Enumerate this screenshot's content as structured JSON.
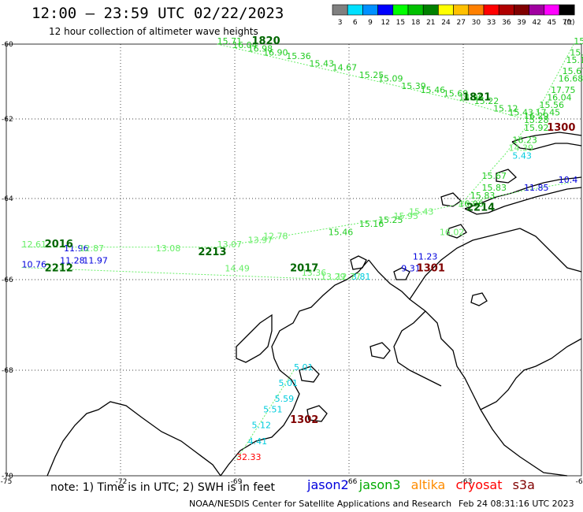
{
  "header": {
    "title": "12:00 — 23:59 UTC 02/22/2023",
    "subtitle": "12 hour collection of altimeter wave heights"
  },
  "legend": {
    "unit": "(ft)",
    "bins": [
      {
        "label": "3",
        "color": "#808080"
      },
      {
        "label": "6",
        "color": "#00e0ff"
      },
      {
        "label": "9",
        "color": "#0090ff"
      },
      {
        "label": "12",
        "color": "#0000ff"
      },
      {
        "label": "15",
        "color": "#00ff00"
      },
      {
        "label": "18",
        "color": "#00c000"
      },
      {
        "label": "21",
        "color": "#008000"
      },
      {
        "label": "24",
        "color": "#ffff00"
      },
      {
        "label": "27",
        "color": "#ffc000"
      },
      {
        "label": "30",
        "color": "#ff8000"
      },
      {
        "label": "33",
        "color": "#ff0000"
      },
      {
        "label": "36",
        "color": "#b00000"
      },
      {
        "label": "39",
        "color": "#800000"
      },
      {
        "label": "42",
        "color": "#a000a0"
      },
      {
        "label": "45",
        "color": "#ff00ff"
      },
      {
        "label": "70",
        "color": "#000000"
      }
    ]
  },
  "axes": {
    "lat_labels": [
      "-60",
      "-62",
      "-64",
      "-66",
      "-68",
      "-70"
    ],
    "lon_labels": [
      "-75",
      "-72",
      "-69",
      "-66",
      "-63",
      "-60"
    ]
  },
  "colors": {
    "jason2": "#0000dd",
    "jason3": "#00aa00",
    "jason3_light": "#33dd33",
    "altika": "#ff8c00",
    "cryosat": "#ff0000",
    "s3a": "#800000",
    "cyan": "#00ccdd"
  },
  "track_labels": [
    {
      "text": "1820",
      "color": "#006600",
      "lon": -68.6,
      "lat": -60.0
    },
    {
      "text": "1821",
      "color": "#006600",
      "lon": -63.1,
      "lat": -61.5
    },
    {
      "text": "1300",
      "color": "#800000",
      "lon": -60.9,
      "lat": -62.3
    },
    {
      "text": "2214",
      "color": "#006600",
      "lon": -63.0,
      "lat": -64.3
    },
    {
      "text": "1301",
      "color": "#800000",
      "lon": -64.3,
      "lat": -65.8
    },
    {
      "text": "2016",
      "color": "#006600",
      "lon": -74.0,
      "lat": -65.2
    },
    {
      "text": "2212",
      "color": "#006600",
      "lon": -74.0,
      "lat": -65.8
    },
    {
      "text": "2213",
      "color": "#006600",
      "lon": -70.0,
      "lat": -65.4
    },
    {
      "text": "2017",
      "color": "#006600",
      "lon": -67.6,
      "lat": -65.8
    },
    {
      "text": "1302",
      "color": "#800000",
      "lon": -67.6,
      "lat": -69.0
    }
  ],
  "readings": [
    {
      "text": "15.71",
      "color": "#22cc22",
      "lon": -69.5,
      "lat": -60.0
    },
    {
      "text": "16.04",
      "color": "#22cc22",
      "lon": -69.1,
      "lat": -60.1
    },
    {
      "text": "16.98",
      "color": "#22cc22",
      "lon": -68.7,
      "lat": -60.2
    },
    {
      "text": "16.90",
      "color": "#22cc22",
      "lon": -68.3,
      "lat": -60.3
    },
    {
      "text": "15.36",
      "color": "#22cc22",
      "lon": -67.7,
      "lat": -60.4
    },
    {
      "text": "15.43",
      "color": "#22cc22",
      "lon": -67.1,
      "lat": -60.6
    },
    {
      "text": "14.67",
      "color": "#22cc22",
      "lon": -66.5,
      "lat": -60.7
    },
    {
      "text": "15.25",
      "color": "#22cc22",
      "lon": -65.8,
      "lat": -60.9
    },
    {
      "text": "15.09",
      "color": "#22cc22",
      "lon": -65.3,
      "lat": -61.0
    },
    {
      "text": "15.39",
      "color": "#22cc22",
      "lon": -64.7,
      "lat": -61.2
    },
    {
      "text": "15.46",
      "color": "#22cc22",
      "lon": -64.2,
      "lat": -61.3
    },
    {
      "text": "15.69",
      "color": "#22cc22",
      "lon": -63.6,
      "lat": -61.4
    },
    {
      "text": "14.96",
      "color": "#22cc22",
      "lon": -63.2,
      "lat": -61.5
    },
    {
      "text": "15.22",
      "color": "#22cc22",
      "lon": -62.8,
      "lat": -61.6
    },
    {
      "text": "15.12",
      "color": "#22cc22",
      "lon": -62.3,
      "lat": -61.8
    },
    {
      "text": "15.43",
      "color": "#22cc22",
      "lon": -61.9,
      "lat": -61.9
    },
    {
      "text": "16.29",
      "color": "#22cc22",
      "lon": -61.5,
      "lat": -62.0
    },
    {
      "text": "15.10",
      "color": "#22cc22",
      "lon": -60.2,
      "lat": -59.9
    },
    {
      "text": "15.30",
      "color": "#22cc22",
      "lon": -60.3,
      "lat": -60.3
    },
    {
      "text": "15.1",
      "color": "#22cc22",
      "lon": -60.4,
      "lat": -60.5
    },
    {
      "text": "15.67",
      "color": "#22cc22",
      "lon": -60.5,
      "lat": -60.8
    },
    {
      "text": "16.68",
      "color": "#22cc22",
      "lon": -60.6,
      "lat": -61.0
    },
    {
      "text": "17.75",
      "color": "#22cc22",
      "lon": -60.8,
      "lat": -61.3
    },
    {
      "text": "16.04",
      "color": "#22cc22",
      "lon": -60.9,
      "lat": -61.5
    },
    {
      "text": "15.56",
      "color": "#22cc22",
      "lon": -61.1,
      "lat": -61.7
    },
    {
      "text": "17.45",
      "color": "#22cc22",
      "lon": -61.2,
      "lat": -61.9
    },
    {
      "text": "15.28",
      "color": "#22cc22",
      "lon": -61.5,
      "lat": -62.1
    },
    {
      "text": "15.92",
      "color": "#22cc22",
      "lon": -61.5,
      "lat": -62.3
    },
    {
      "text": "16.23",
      "color": "#22cc22",
      "lon": -61.8,
      "lat": -62.6
    },
    {
      "text": "14.39",
      "color": "#66ee66",
      "lon": -61.9,
      "lat": -62.8
    },
    {
      "text": "5.43",
      "color": "#00ccdd",
      "lon": -61.8,
      "lat": -63.0
    },
    {
      "text": "15.67",
      "color": "#22cc22",
      "lon": -62.6,
      "lat": -63.5
    },
    {
      "text": "15.83",
      "color": "#22cc22",
      "lon": -62.6,
      "lat": -63.8
    },
    {
      "text": "15.83",
      "color": "#22cc22",
      "lon": -62.9,
      "lat": -64.0
    },
    {
      "text": "16.06",
      "color": "#22cc22",
      "lon": -63.2,
      "lat": -64.2
    },
    {
      "text": "11.85",
      "color": "#0000dd",
      "lon": -61.5,
      "lat": -63.8
    },
    {
      "text": "10.4",
      "color": "#0000dd",
      "lon": -60.6,
      "lat": -63.6
    },
    {
      "text": "16.02",
      "color": "#66ee66",
      "lon": -63.7,
      "lat": -64.9
    },
    {
      "text": "11.23",
      "color": "#0000dd",
      "lon": -64.4,
      "lat": -65.5
    },
    {
      "text": "9.31",
      "color": "#0000dd",
      "lon": -64.7,
      "lat": -65.8
    },
    {
      "text": "3.81",
      "color": "#00ccdd",
      "lon": -66.0,
      "lat": -66.0
    },
    {
      "text": "15.46",
      "color": "#22cc22",
      "lon": -66.6,
      "lat": -64.9
    },
    {
      "text": "15.16",
      "color": "#22cc22",
      "lon": -65.8,
      "lat": -64.7
    },
    {
      "text": "15.25",
      "color": "#22cc22",
      "lon": -65.3,
      "lat": -64.6
    },
    {
      "text": "15.95",
      "color": "#66ee66",
      "lon": -64.9,
      "lat": -64.5
    },
    {
      "text": "15.43",
      "color": "#66ee66",
      "lon": -64.5,
      "lat": -64.4
    },
    {
      "text": "12.61",
      "color": "#66ee66",
      "lon": -74.6,
      "lat": -65.2
    },
    {
      "text": "11.96",
      "color": "#0000dd",
      "lon": -73.5,
      "lat": -65.3
    },
    {
      "text": "12.87",
      "color": "#66ee66",
      "lon": -73.1,
      "lat": -65.3
    },
    {
      "text": "10.76",
      "color": "#0000dd",
      "lon": -74.6,
      "lat": -65.7
    },
    {
      "text": "11.28",
      "color": "#0000dd",
      "lon": -73.6,
      "lat": -65.6
    },
    {
      "text": "11.97",
      "color": "#0000dd",
      "lon": -73.0,
      "lat": -65.6
    },
    {
      "text": "13.08",
      "color": "#66ee66",
      "lon": -71.1,
      "lat": -65.3
    },
    {
      "text": "13.07",
      "color": "#66ee66",
      "lon": -69.5,
      "lat": -65.2
    },
    {
      "text": "13.97",
      "color": "#66ee66",
      "lon": -68.7,
      "lat": -65.1
    },
    {
      "text": "12.78",
      "color": "#66ee66",
      "lon": -68.3,
      "lat": -65.0
    },
    {
      "text": "14.49",
      "color": "#66ee66",
      "lon": -69.3,
      "lat": -65.8
    },
    {
      "text": "13.36",
      "color": "#66ee66",
      "lon": -67.3,
      "lat": -65.9
    },
    {
      "text": "13.29",
      "color": "#66ee66",
      "lon": -66.8,
      "lat": -66.0
    },
    {
      "text": "12.77",
      "color": "#66ee66",
      "lon": -66.4,
      "lat": -66.0
    },
    {
      "text": "5.01",
      "color": "#00ccdd",
      "lon": -67.5,
      "lat": -68.0
    },
    {
      "text": "5.01",
      "color": "#00ccdd",
      "lon": -67.9,
      "lat": -68.3
    },
    {
      "text": "5.59",
      "color": "#00ccdd",
      "lon": -68.0,
      "lat": -68.6
    },
    {
      "text": "5.51",
      "color": "#00ccdd",
      "lon": -68.3,
      "lat": -68.8
    },
    {
      "text": "5.12",
      "color": "#00ccdd",
      "lon": -68.6,
      "lat": -69.1
    },
    {
      "text": "4.41",
      "color": "#00ccdd",
      "lon": -68.7,
      "lat": -69.4
    },
    {
      "text": "32.33",
      "color": "#ff0000",
      "lon": -69.0,
      "lat": -69.7
    }
  ],
  "footer": {
    "note": "note:  1) Time is in UTC; 2) SWH is in feet",
    "satellites": [
      {
        "name": "jason2",
        "color": "#0000dd"
      },
      {
        "name": "jason3",
        "color": "#00aa00"
      },
      {
        "name": "altika",
        "color": "#ff8c00"
      },
      {
        "name": "cryosat",
        "color": "#ff0000"
      },
      {
        "name": "s3a",
        "color": "#800000"
      }
    ],
    "credit": "NOAA/NESDIS Center for Satellite Applications and Research",
    "timestamp": "Feb 24 08:31:16 UTC 2023"
  }
}
